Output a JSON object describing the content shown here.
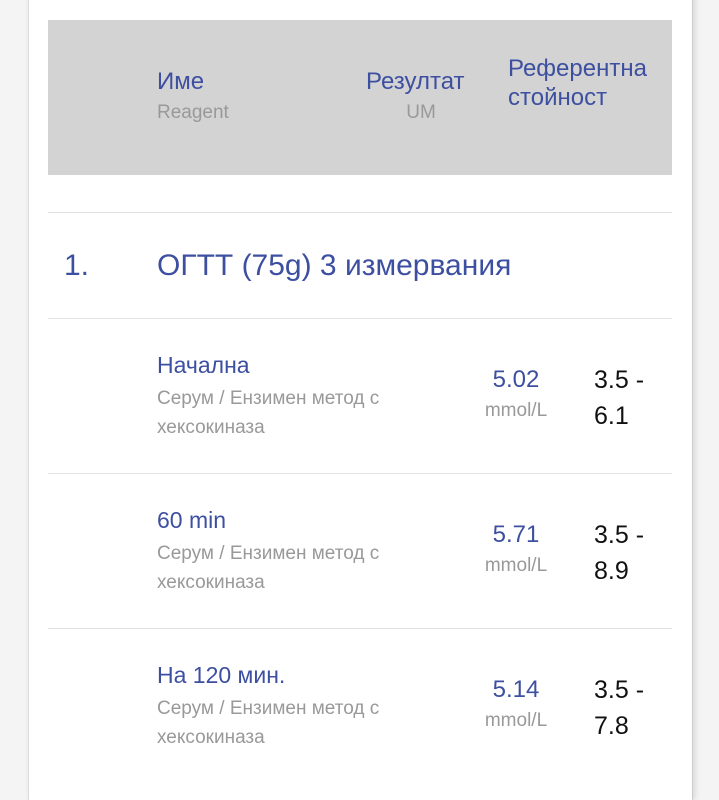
{
  "header": {
    "name_label": "Име",
    "name_sub": "Reagent",
    "result_label": "Резултат",
    "result_sub": "UM",
    "reference_label": "Референтна стойност"
  },
  "group": {
    "number": "1.",
    "title": "ОГТТ (75g) 3 измервания"
  },
  "rows": [
    {
      "name": "Начална",
      "method": "Серум / Ензимен метод с хексокиназа",
      "value": "5.02",
      "unit": "mmol/L",
      "reference": "3.5 - 6.1"
    },
    {
      "name": "60 min",
      "method": "Серум / Ензимен метод с хексокиназа",
      "value": "5.71",
      "unit": "mmol/L",
      "reference": "3.5 - 8.9"
    },
    {
      "name": "На 120 мин.",
      "method": "Серум / Ензимен метод с хексокиназа",
      "value": "5.14",
      "unit": "mmol/L",
      "reference": "3.5 - 7.8"
    }
  ],
  "colors": {
    "accent": "#3d4fa0",
    "header_bg": "#d3d3d3"
  }
}
